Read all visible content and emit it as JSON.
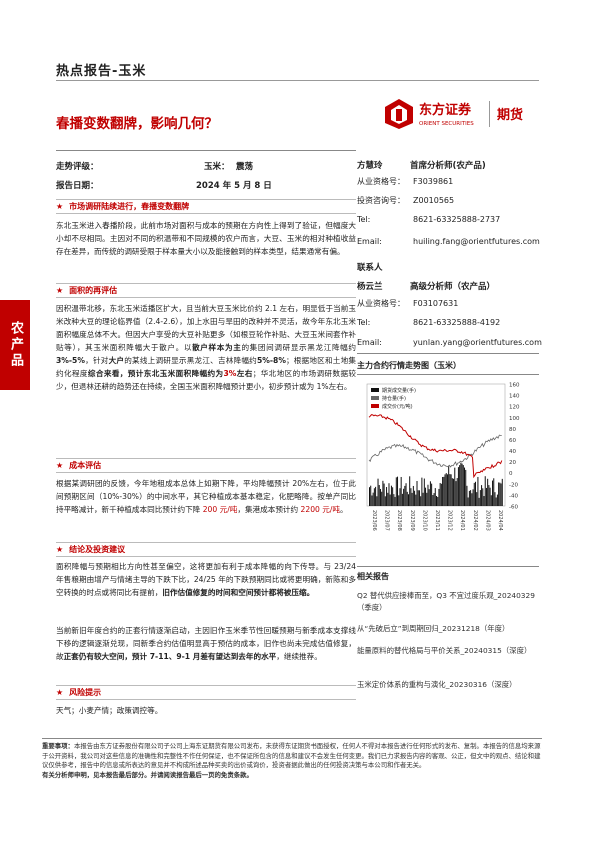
{
  "header": {
    "report_type": "热点报告-玉米",
    "headline": "春播变数翻牌，影响几何？",
    "logo_name": "东方证券",
    "logo_en": "ORIENT SECURITIES",
    "logo_sub": "期货"
  },
  "sidebar": {
    "label": "农产品"
  },
  "meta": {
    "trend_label": "走势评级：",
    "trend_item": "玉米：",
    "trend_value": "震荡",
    "date_label": "报告日期：",
    "date_value": "2024 年 5 月 8 日"
  },
  "sections": [
    {
      "title": "市场调研陆续进行，春播变数翻牌"
    },
    {
      "title": "面积的再评估"
    },
    {
      "title": "成本评估"
    },
    {
      "title": "结论及投资建议"
    },
    {
      "title": "风险提示"
    }
  ],
  "paras": {
    "p1": "东北玉米进入春播阶段，此前市场对面积与成本的预期在方向性上得到了验证，但幅度大小却不尽相同。主因对不同的积温带和不同规模的农户而言，大豆、玉米的相对种植收益存在差异，而传统的调研受限于样本量大小以及能接触到的样本类型，结果通常有偏。",
    "p2a": "因积温带北移，东北玉米适播区扩大，且当前大豆玉米比价约 2.1 左右，明显低于当前玉米改种大豆的理论临界值（2.4-2.6），加上水田与旱田的改种并不灵活，故今年东北玉米面积幅度总体不大。但因大户享受的大豆补贴更多（如根豆轮作补贴、大豆玉米间套作补贴等），其玉米面积降幅大于散户。以",
    "p2b": "散户样本为主",
    "p2c": "的集团间调研显示黑龙江降幅约",
    "p2d": "3%-5%",
    "p2e": "，针对",
    "p2f": "大户",
    "p2g": "的某线上调研显示黑龙江、吉林降幅约",
    "p2h": "5%-8%",
    "p2i": "；根据地区和土地集约化程度",
    "p2j": "综合来看，预计东北玉米面积降幅约为",
    "p2k": "3%",
    "p2l": "左右",
    "p2m": "；华北地区的市场调研数据较少，但退林还耕的趋势还在持续，全国玉米面积降幅预计更小，初步预计或为 1%左右。",
    "p3a": "根据某调研团的反馈，今年地租成本总体上如期下降，平均降幅预计 20%左右，位于此间预期区间（10%-30%）的中间水平，其它种植成本基本稳定，化肥略降。按单产同比持平略减计，新千种植成本同比预计约下降 ",
    "p3b": "200 元/吨",
    "p3c": "，集港成本预计约 ",
    "p3d": "2200 元/吨",
    "p3e": "。",
    "p4": "面积降幅与预期相比方向性甚至偏空，这将更加有利于成本降幅的向下传导。与 23/24 年售粮期由增产与情绪主导的下跌下比，24/25 年的下跌预期同比或将更明确，新陈和多空转换的时点或将同比有提前，",
    "p4b": "旧作估值修复的时间和空间预计都将被压缩。",
    "p5a": "当前新旧年度合约的正套行情逐渐启动，主因旧作玉米季节性回暖预期与新季成本支撑线下移的逻辑逐渐兑现，同新季合约估值明显高于预估的成本，旧作也尚未完成估值修复，故",
    "p5b": "正套仍有较大空间，预计 7-11、9-1 月差有望达到去年的水平",
    "p5c": "，继续推荐。",
    "p6": "天气；小麦产情；政策调控等。"
  },
  "analysts": [
    {
      "name": "方慧玲",
      "title": "首席分析师(农产品)",
      "rows": [
        {
          "k": "从业资格号：",
          "v": "F3039861"
        },
        {
          "k": "投资咨询号：",
          "v": "Z0010565"
        },
        {
          "k": "Tel:",
          "v": "8621-63325888-2737"
        },
        {
          "k": "Email:",
          "v": "huiling.fang@orientfutures.com"
        }
      ]
    },
    {
      "name": "杨云兰",
      "title": "高级分析师（农产品）",
      "rows": [
        {
          "k": "从业资格号：",
          "v": "F03107631"
        },
        {
          "k": "Tel:",
          "v": "8621-63325888-4192"
        },
        {
          "k": "Email:",
          "v": "yunlan.yang@orientfutures.com"
        }
      ]
    }
  ],
  "contact_label": "联系人",
  "chart_title": "主力合约行情走势图（玉米）",
  "chart_data": {
    "type": "line",
    "legend": [
      "期货成交量(手)",
      "持仓量(手)",
      "成交价(元/吨)"
    ],
    "right_ticks": [
      "160",
      "140",
      "120",
      "100",
      "80",
      "60",
      "40",
      "20",
      "0",
      "-20",
      "-40",
      "-60"
    ],
    "x_ticks": [
      "2023/06",
      "2023/07",
      "2023/08",
      "2023/09",
      "2023/10",
      "2023/11",
      "2023/12",
      "2024/01",
      "2024/02",
      "2024/03",
      "2024/04"
    ],
    "colors": {
      "price": "#c00000",
      "oi": "#666666",
      "volume": "#111111"
    }
  },
  "related_title": "相关报告",
  "related": [
    "Q2 替代供应接棒而至，Q3 不宜过度乐观_20240329（季度）",
    "从“先破后立”到周期回归_20231218（年度）",
    "能量原料的替代格局与平价关系_20240315（深度）",
    "玉米定价体系的重构与演化_20230316（深度）"
  ],
  "disclaimer": {
    "label": "重要事项：",
    "text": "本报告由东方证券股份有限公司子公司上海东证期货有限公司发布，未获得东证期货书面授权，任何人不得对本报告进行任何形式的发布、复制。本报告的信息均来源于公开资料，我公司对这些信息的准确性和完整性不作任何保证，也不保证所包含的信息和建议不会发生任何变更。我们已力求报告内容的客观、公正，但文中的观点、结论和建议仅供参考，报告中的信息或所表达的意见并不构成所述品种买卖的出价或询价，投资者据此做出的任何投资决策与本公司和作者无关。",
    "footer": "有关分析师申明，见本报告最后部分。并请阅读报告最后一页的免责条款。"
  }
}
